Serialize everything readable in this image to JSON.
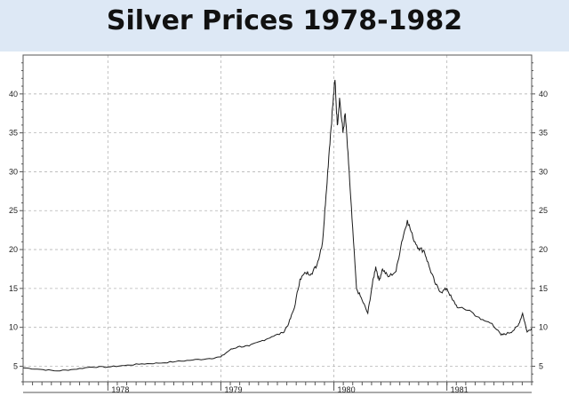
{
  "chart_data": {
    "type": "line",
    "title": "Silver Prices 1978-1982",
    "xlabel": "",
    "ylabel": "",
    "x_range": [
      1977.25,
      1981.75
    ],
    "ylim": [
      3,
      45
    ],
    "y_ticks": [
      5,
      10,
      15,
      20,
      25,
      30,
      35,
      40
    ],
    "x_tick_labels": [
      {
        "value": 1978,
        "label": "1978"
      },
      {
        "value": 1979,
        "label": "1979"
      },
      {
        "value": 1980,
        "label": "1980"
      },
      {
        "value": 1981,
        "label": "1981"
      }
    ],
    "grid": true,
    "series": [
      {
        "color": "#1a1a1a",
        "points": [
          [
            1977.25,
            4.8
          ],
          [
            1977.4,
            4.6
          ],
          [
            1977.55,
            4.4
          ],
          [
            1977.7,
            4.6
          ],
          [
            1977.85,
            4.9
          ],
          [
            1978.0,
            4.9
          ],
          [
            1978.15,
            5.1
          ],
          [
            1978.3,
            5.3
          ],
          [
            1978.45,
            5.4
          ],
          [
            1978.6,
            5.6
          ],
          [
            1978.75,
            5.8
          ],
          [
            1978.9,
            6.0
          ],
          [
            1979.0,
            6.2
          ],
          [
            1979.08,
            7.1
          ],
          [
            1979.15,
            7.5
          ],
          [
            1979.25,
            7.6
          ],
          [
            1979.35,
            8.2
          ],
          [
            1979.45,
            8.8
          ],
          [
            1979.55,
            9.3
          ],
          [
            1979.6,
            10.5
          ],
          [
            1979.65,
            12.5
          ],
          [
            1979.7,
            16.2
          ],
          [
            1979.75,
            17.0
          ],
          [
            1979.8,
            16.9
          ],
          [
            1979.85,
            18.0
          ],
          [
            1979.9,
            21.0
          ],
          [
            1979.93,
            27.0
          ],
          [
            1979.96,
            33.0
          ],
          [
            1979.99,
            38.5
          ],
          [
            1980.01,
            41.8
          ],
          [
            1980.03,
            36.0
          ],
          [
            1980.05,
            39.5
          ],
          [
            1980.08,
            35.0
          ],
          [
            1980.1,
            37.5
          ],
          [
            1980.13,
            31.0
          ],
          [
            1980.16,
            24.0
          ],
          [
            1980.2,
            15.0
          ],
          [
            1980.25,
            13.5
          ],
          [
            1980.3,
            11.8
          ],
          [
            1980.34,
            15.5
          ],
          [
            1980.37,
            17.8
          ],
          [
            1980.4,
            16.0
          ],
          [
            1980.43,
            17.5
          ],
          [
            1980.48,
            16.5
          ],
          [
            1980.55,
            17.2
          ],
          [
            1980.6,
            21.0
          ],
          [
            1980.65,
            23.8
          ],
          [
            1980.7,
            21.5
          ],
          [
            1980.75,
            20.2
          ],
          [
            1980.8,
            19.8
          ],
          [
            1980.85,
            17.5
          ],
          [
            1980.9,
            15.5
          ],
          [
            1980.95,
            14.5
          ],
          [
            1981.0,
            15.0
          ],
          [
            1981.05,
            13.5
          ],
          [
            1981.1,
            12.5
          ],
          [
            1981.2,
            12.2
          ],
          [
            1981.3,
            11.0
          ],
          [
            1981.4,
            10.5
          ],
          [
            1981.48,
            9.0
          ],
          [
            1981.53,
            9.2
          ],
          [
            1981.58,
            9.5
          ],
          [
            1981.63,
            10.2
          ],
          [
            1981.67,
            11.8
          ],
          [
            1981.71,
            9.4
          ],
          [
            1981.75,
            9.9
          ]
        ]
      }
    ]
  }
}
